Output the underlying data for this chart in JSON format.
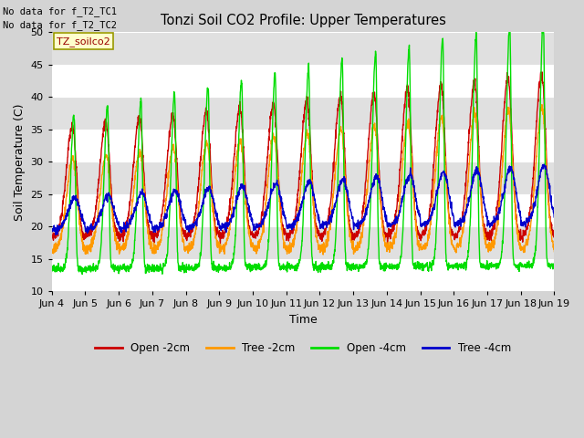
{
  "title": "Tonzi Soil CO2 Profile: Upper Temperatures",
  "ylabel": "Soil Temperature (C)",
  "xlabel": "Time",
  "ylim": [
    10,
    50
  ],
  "fig_bg": "#d8d8d8",
  "plot_bg": "#d8d8d8",
  "series": {
    "open_2cm": {
      "color": "#cc0000",
      "label": "Open -2cm"
    },
    "tree_2cm": {
      "color": "#ff9900",
      "label": "Tree -2cm"
    },
    "open_4cm": {
      "color": "#00dd00",
      "label": "Open -4cm"
    },
    "tree_4cm": {
      "color": "#0000cc",
      "label": "Tree -4cm"
    }
  },
  "xtick_labels": [
    "Jun 4",
    "Jun 5",
    "Jun 6",
    "Jun 7",
    "Jun 8",
    "Jun 9",
    "Jun 10",
    "Jun 11",
    "Jun 12",
    "Jun 13",
    "Jun 14",
    "Jun 15",
    "Jun 16",
    "Jun 17",
    "Jun 18",
    "Jun 19"
  ],
  "ytick_values": [
    10,
    15,
    20,
    25,
    30,
    35,
    40,
    45,
    50
  ],
  "annotation_text": "TZ_soilco2",
  "no_data_text1": "No data for f_T2_TC1",
  "no_data_text2": "No data for f_T2_TC2",
  "n_days": 15,
  "pts_per_day": 144
}
